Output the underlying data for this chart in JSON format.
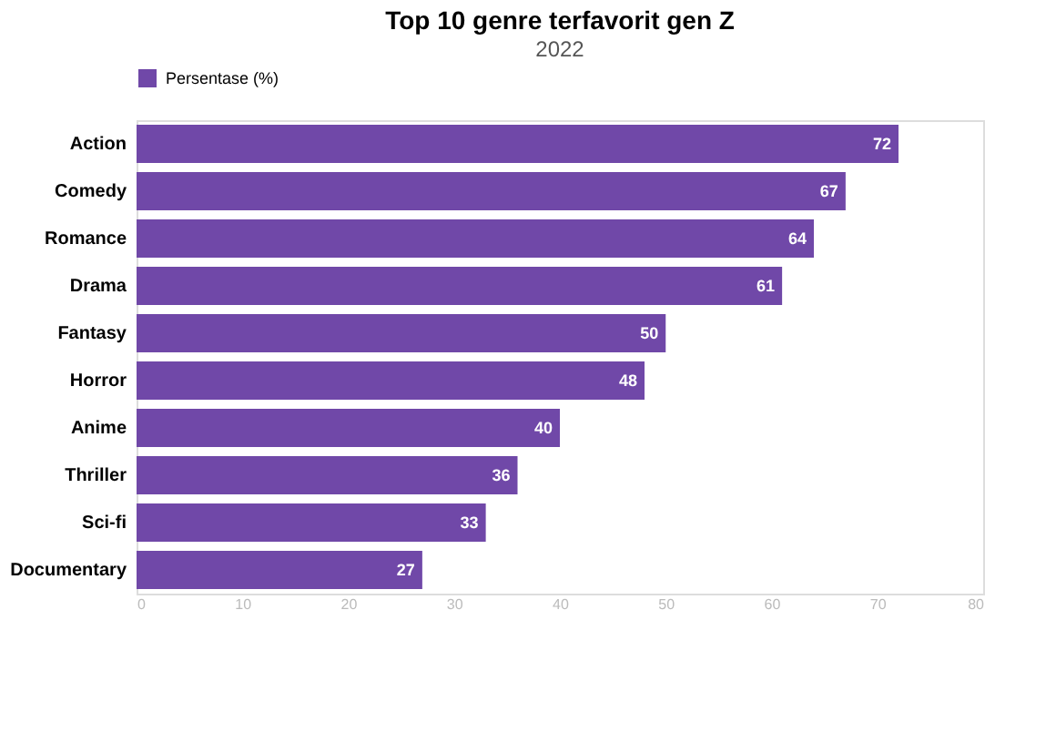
{
  "chart_data": {
    "type": "bar",
    "orientation": "horizontal",
    "title": "Top 10 genre terfavorit gen Z",
    "subtitle": "2022",
    "categories": [
      "Action",
      "Comedy",
      "Romance",
      "Drama",
      "Fantasy",
      "Horror",
      "Anime",
      "Thriller",
      "Sci-fi",
      "Documentary"
    ],
    "series": [
      {
        "name": "Persentase (%)",
        "color": "#7048a8",
        "values": [
          72,
          67,
          64,
          61,
          50,
          48,
          40,
          36,
          33,
          27
        ]
      }
    ],
    "xlim": [
      0,
      80
    ],
    "xticks": [
      0,
      10,
      20,
      30,
      40,
      50,
      60,
      70,
      80
    ],
    "data_labels": true,
    "legend": "top",
    "grid": false
  }
}
